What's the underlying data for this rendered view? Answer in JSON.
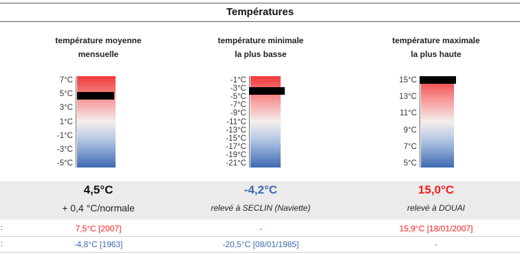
{
  "header": {
    "title": "Températures"
  },
  "colors": {
    "red": "#ff1a1a",
    "blue": "#3a6aad",
    "band": "#ebebeb"
  },
  "columns": [
    {
      "title_line1": "température moyenne",
      "title_line2": "mensuelle",
      "ticks": [
        "7°C",
        "5°C",
        "3°C",
        "1°C",
        "-1°C",
        "-3°C",
        "-5°C"
      ],
      "value": "4,5°C",
      "value_color": "#111111",
      "sub": "+ 0,4 °C/normale",
      "sub_italic": false,
      "level": 0.79
    },
    {
      "title_line1": "température minimale",
      "title_line2": "la plus basse",
      "ticks": [
        "-1°C",
        "-3°C",
        "-5°C",
        "-7°C",
        "-9°C",
        "-11°C",
        "-13°C",
        "-15°C",
        "-17°C",
        "-19°C",
        "-21°C"
      ],
      "value": "-4,2°C",
      "value_color": "#3a6aad",
      "sub": "relevé à SECLIN (Naviette)",
      "sub_italic": true,
      "level": 0.84
    },
    {
      "title_line1": "température maximale",
      "title_line2": "la plus haute",
      "ticks": [
        "15°C",
        "13°C",
        "11°C",
        "9°C",
        "7°C",
        "5°C"
      ],
      "value": "15,0°C",
      "value_color": "#ff1a1a",
      "sub": "relevé à DOUAI",
      "sub_italic": true,
      "level": 0.96
    }
  ],
  "records": {
    "rows": [
      {
        "label": ":",
        "cells": [
          {
            "text": "7,5°C  [2007]",
            "color": "#ff1a1a"
          },
          {
            "text": "-",
            "color": "#ff1a1a"
          },
          {
            "text": "15,9°C  [18/01/2007]",
            "color": "#ff1a1a"
          }
        ]
      },
      {
        "label": ":",
        "cells": [
          {
            "text": "-4,8°C  [1963]",
            "color": "#3a6aad"
          },
          {
            "text": "-20,5°C  [08/01/1985]",
            "color": "#3a6aad"
          },
          {
            "text": "-",
            "color": "#3a6aad"
          }
        ]
      }
    ]
  }
}
